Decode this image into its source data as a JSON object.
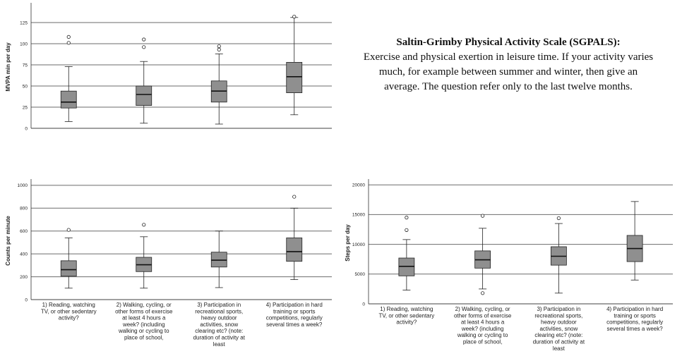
{
  "description": {
    "title": "Saltin-Grimby Physical Activity Scale (SGPALS):",
    "body": "Exercise and physical exertion in leisure time. If your activity varies much, for example between summer and winter, then give an average. The question refer only to the last twelve months."
  },
  "chart_data": [
    {
      "type": "box",
      "ylabel": "MVPA min per day",
      "ylim": [
        0,
        145
      ],
      "yticks": [
        0,
        25,
        50,
        75,
        100,
        125
      ],
      "grid": true,
      "categories": [],
      "boxes": [
        {
          "whisker_low": 8,
          "q1": 24,
          "median": 31,
          "q3": 44,
          "whisker_high": 73,
          "outliers": [
            101,
            108
          ]
        },
        {
          "whisker_low": 6,
          "q1": 27,
          "median": 40,
          "q3": 50,
          "whisker_high": 79,
          "outliers": [
            96,
            105
          ]
        },
        {
          "whisker_low": 5,
          "q1": 31,
          "median": 44,
          "q3": 56,
          "whisker_high": 88,
          "outliers": [
            93,
            97
          ]
        },
        {
          "whisker_low": 16,
          "q1": 42,
          "median": 61,
          "q3": 78,
          "whisker_high": 131,
          "outliers": [
            132
          ]
        }
      ]
    },
    {
      "type": "box",
      "ylabel": "Counts per minute",
      "ylim": [
        0,
        1030
      ],
      "yticks": [
        0,
        200,
        400,
        600,
        800,
        1000
      ],
      "grid": true,
      "categories": [
        [
          "1) Reading, watching",
          "TV, or other sedentary",
          "activity?"
        ],
        [
          "2) Walking, cycling, or",
          "other forms of exercise",
          "at least 4 hours a",
          "week? (including",
          "walking or cycling to",
          "place of school,"
        ],
        [
          "3) Participation in",
          "recreational sports,",
          "heavy outdoor",
          "activities, snow",
          "clearing etc? (note:",
          "duration of activity at",
          "least"
        ],
        [
          "4) Participation in hard",
          "training or sports",
          "competitions, regularly",
          "several times a week?"
        ]
      ],
      "boxes": [
        {
          "whisker_low": 100,
          "q1": 205,
          "median": 262,
          "q3": 340,
          "whisker_high": 540,
          "outliers": [
            610
          ]
        },
        {
          "whisker_low": 100,
          "q1": 245,
          "median": 305,
          "q3": 370,
          "whisker_high": 550,
          "outliers": [
            655
          ]
        },
        {
          "whisker_low": 105,
          "q1": 285,
          "median": 345,
          "q3": 415,
          "whisker_high": 600,
          "outliers": []
        },
        {
          "whisker_low": 175,
          "q1": 335,
          "median": 420,
          "q3": 540,
          "whisker_high": 800,
          "outliers": [
            900
          ]
        }
      ]
    },
    {
      "type": "box",
      "ylabel": "Steps per day",
      "ylim": [
        0,
        20500
      ],
      "yticks": [
        0,
        5000,
        10000,
        15000,
        20000
      ],
      "grid": true,
      "categories": [
        [
          "1) Reading, watching",
          "TV, or other sedentary",
          "activity?"
        ],
        [
          "2) Walking, cycling, or",
          "other forms of exercise",
          "at least 4 hours a",
          "week? (including",
          "walking or cycling to",
          "place of school,"
        ],
        [
          "3) Participation in",
          "recreational sports,",
          "heavy outdoor",
          "activities, snow",
          "clearing etc? (note:",
          "duration of activity at",
          "least"
        ],
        [
          "4) Participation in hard",
          "training or sports",
          "competitions, regularly",
          "several times a week?"
        ]
      ],
      "boxes": [
        {
          "whisker_low": 2300,
          "q1": 4700,
          "median": 6300,
          "q3": 7700,
          "whisker_high": 10800,
          "outliers": [
            12400,
            14500
          ]
        },
        {
          "whisker_low": 2500,
          "q1": 6000,
          "median": 7400,
          "q3": 8900,
          "whisker_high": 12700,
          "outliers": [
            1800,
            14800
          ]
        },
        {
          "whisker_low": 1800,
          "q1": 6500,
          "median": 8000,
          "q3": 9600,
          "whisker_high": 13500,
          "outliers": [
            14400
          ]
        },
        {
          "whisker_low": 4000,
          "q1": 7100,
          "median": 9300,
          "q3": 11500,
          "whisker_high": 17200,
          "outliers": []
        }
      ]
    }
  ]
}
